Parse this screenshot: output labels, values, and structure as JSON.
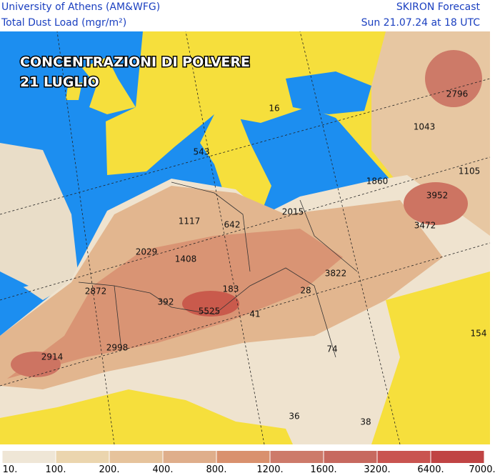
{
  "header": {
    "left": [
      "University of Athens (AM&WFG)",
      "Total Dust Load (mgr/m²)"
    ],
    "right": [
      "SKIRON Forecast",
      "Sun 21.07.24 at 18 UTC"
    ]
  },
  "overlay": {
    "title": "CONCENTRAZIONI DI POLVERE",
    "subtitle": "21 LUGLIO"
  },
  "map_labels": [
    16,
    543,
    2796,
    1043,
    1105,
    1860,
    3952,
    2015,
    3472,
    1117,
    642,
    2029,
    1408,
    3822,
    2872,
    183,
    28,
    392,
    5525,
    41,
    154,
    74,
    2998,
    2914,
    36,
    38
  ],
  "colorbar": {
    "ticks": [
      {
        "value": 10,
        "label": "10."
      },
      {
        "value": 100,
        "label": "100."
      },
      {
        "value": 200,
        "label": "200."
      },
      {
        "value": 400,
        "label": "400."
      },
      {
        "value": 800,
        "label": "800."
      },
      {
        "value": 1200,
        "label": "1200."
      },
      {
        "value": 1600,
        "label": "1600."
      },
      {
        "value": 3200,
        "label": "3200."
      },
      {
        "value": 6400,
        "label": "6400."
      },
      {
        "value": 7000,
        "label": "7000."
      }
    ],
    "colors": [
      "#efe6d6",
      "#ebd5ae",
      "#e6c39c",
      "#dfae8b",
      "#d9916e",
      "#cd7a6a",
      "#c7695f",
      "#c95450",
      "#c04444"
    ]
  }
}
